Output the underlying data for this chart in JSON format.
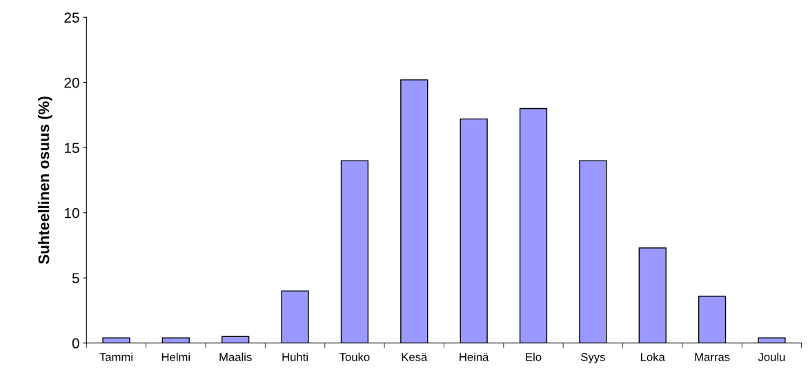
{
  "chart_data": {
    "type": "bar",
    "ylabel": "Suhteellinen osuus (%)",
    "categories": [
      "Tammi",
      "Helmi",
      "Maalis",
      "Huhti",
      "Touko",
      "Kesä",
      "Heinä",
      "Elo",
      "Syys",
      "Loka",
      "Marras",
      "Joulu"
    ],
    "values": [
      0.4,
      0.4,
      0.5,
      4.0,
      14.0,
      20.2,
      17.2,
      18.0,
      14.0,
      7.3,
      3.6,
      0.4
    ],
    "color": "#9999ff",
    "ylim": [
      0,
      25
    ],
    "yticks": [
      0,
      5,
      10,
      15,
      20,
      25
    ],
    "grid": false
  }
}
